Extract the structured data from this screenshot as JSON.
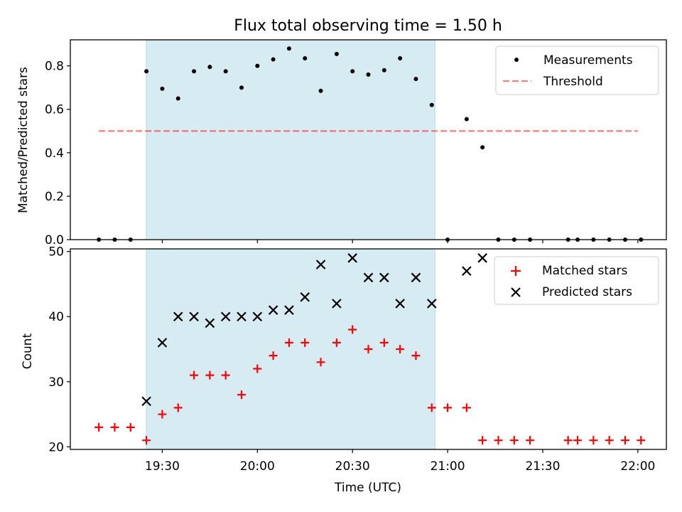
{
  "figure": {
    "title": "Flux total observing time = 1.50 h",
    "xlabel": "Time (UTC)"
  },
  "colors": {
    "shade": "#add8e6",
    "measurements": "#000000",
    "threshold": "#ff0000",
    "matched": "#ff0000",
    "predicted": "#000000"
  },
  "chart_data": [
    {
      "type": "scatter",
      "ylabel": "Matched/Predicted stars",
      "xlim": [
        "19:01",
        "22:09"
      ],
      "ylim": [
        0,
        0.92
      ],
      "yticks": [
        0.0,
        0.2,
        0.4,
        0.6,
        0.8
      ],
      "ytick_labels": [
        "0.0",
        "0.2",
        "0.4",
        "0.6",
        "0.8"
      ],
      "shaded_span": [
        "19:25",
        "20:56"
      ],
      "legend": "top-right",
      "series": [
        {
          "name": "Measurements",
          "marker": "dot",
          "x": [
            "19:10",
            "19:15",
            "19:20",
            "19:25",
            "19:30",
            "19:35",
            "19:40",
            "19:45",
            "19:50",
            "19:55",
            "20:00",
            "20:05",
            "20:10",
            "20:15",
            "20:20",
            "20:25",
            "20:30",
            "20:35",
            "20:40",
            "20:45",
            "20:50",
            "20:55",
            "21:00",
            "21:06",
            "21:11",
            "21:16",
            "21:21",
            "21:26",
            "21:38",
            "21:41",
            "21:46",
            "21:51",
            "21:56",
            "22:01"
          ],
          "y": [
            0.0,
            0.0,
            0.0,
            0.775,
            0.695,
            0.65,
            0.775,
            0.795,
            0.775,
            0.7,
            0.8,
            0.83,
            0.88,
            0.835,
            0.685,
            0.855,
            0.775,
            0.76,
            0.78,
            0.835,
            0.74,
            0.62,
            0.0,
            0.555,
            0.425,
            0.0,
            0.0,
            0.0,
            0.0,
            0.0,
            0.0,
            0.0,
            0.0,
            0.0
          ]
        },
        {
          "name": "Threshold",
          "style": "dashed",
          "x": [
            "19:10",
            "22:00"
          ],
          "y": [
            0.5,
            0.5
          ]
        }
      ]
    },
    {
      "type": "scatter",
      "ylabel": "Count",
      "xlim": [
        "19:01",
        "22:09"
      ],
      "ylim": [
        19.6,
        50.4
      ],
      "yticks": [
        20,
        30,
        40,
        50
      ],
      "ytick_labels": [
        "20",
        "30",
        "40",
        "50"
      ],
      "xticks": [
        "19:30",
        "20:00",
        "20:30",
        "21:00",
        "21:30",
        "22:00"
      ],
      "shaded_span": [
        "19:25",
        "20:56"
      ],
      "legend": "top-right",
      "series": [
        {
          "name": "Matched stars",
          "marker": "+",
          "x": [
            "19:10",
            "19:15",
            "19:20",
            "19:25",
            "19:30",
            "19:35",
            "19:40",
            "19:45",
            "19:50",
            "19:55",
            "20:00",
            "20:05",
            "20:10",
            "20:15",
            "20:20",
            "20:25",
            "20:30",
            "20:35",
            "20:40",
            "20:45",
            "20:50",
            "20:55",
            "21:00",
            "21:06",
            "21:11",
            "21:16",
            "21:21",
            "21:26",
            "21:38",
            "21:41",
            "21:46",
            "21:51",
            "21:56",
            "22:01"
          ],
          "y": [
            23,
            23,
            23,
            21,
            25,
            26,
            31,
            31,
            31,
            28,
            32,
            34,
            36,
            36,
            33,
            36,
            38,
            35,
            36,
            35,
            34,
            26,
            26,
            26,
            21,
            21,
            21,
            21,
            21,
            21,
            21,
            21,
            21,
            21
          ]
        },
        {
          "name": "Predicted stars",
          "marker": "x",
          "x": [
            "19:25",
            "19:30",
            "19:35",
            "19:40",
            "19:45",
            "19:50",
            "19:55",
            "20:00",
            "20:05",
            "20:10",
            "20:15",
            "20:20",
            "20:25",
            "20:30",
            "20:35",
            "20:40",
            "20:45",
            "20:50",
            "20:55",
            "21:06",
            "21:11"
          ],
          "y": [
            27,
            36,
            40,
            40,
            39,
            40,
            40,
            40,
            41,
            41,
            43,
            48,
            42,
            49,
            46,
            46,
            42,
            46,
            42,
            47,
            49
          ]
        }
      ]
    }
  ]
}
